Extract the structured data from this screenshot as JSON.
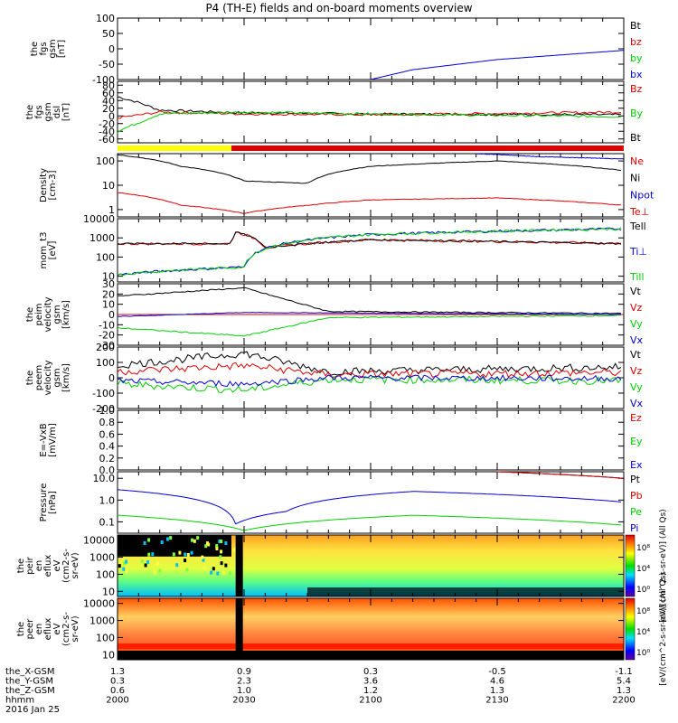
{
  "title": "P4 (TH-E) fields and on-board moments overview",
  "colors": {
    "black": "#000000",
    "red": "#e00000",
    "green": "#00d000",
    "blue": "#0000d8",
    "yellow": "#ffff00"
  },
  "chart_data": [
    {
      "type": "line",
      "panel": "fgs_gsm_nT",
      "ylabel": [
        "the",
        "fgs",
        "gsm",
        "[nT]"
      ],
      "ylim": [
        -100,
        100
      ],
      "yticks": [
        "100",
        "50",
        "0",
        "-50",
        "-100"
      ],
      "legend": [
        {
          "label": "Bt",
          "color": "black"
        },
        {
          "label": "bz",
          "color": "red"
        },
        {
          "label": "by",
          "color": "green"
        },
        {
          "label": "bx",
          "color": "blue"
        }
      ],
      "series": [
        {
          "name": "bx",
          "x": [
            "2100",
            "2110",
            "2130",
            "2150",
            "2200"
          ],
          "y": [
            -100,
            -68,
            -35,
            -15,
            -5
          ]
        }
      ]
    },
    {
      "type": "line",
      "panel": "fgs_gsm_dsl_nT",
      "ylabel": [
        "the",
        "fgs",
        "gsm",
        "dsl",
        "[nT]"
      ],
      "ylim": [
        -70,
        90
      ],
      "yticks": [
        "80",
        "60",
        "40",
        "20",
        "0",
        "-20",
        "-40",
        "-60"
      ],
      "legend": [
        {
          "label": "Bz",
          "color": "red"
        },
        {
          "label": "By",
          "color": "green"
        },
        {
          "label": "Bt",
          "color": "black"
        }
      ],
      "series": [
        {
          "name": "Bt",
          "x": [
            "2000",
            "2005",
            "2010",
            "2030",
            "2100",
            "2200"
          ],
          "y": [
            50,
            35,
            15,
            8,
            5,
            3
          ]
        },
        {
          "name": "Bz",
          "x": [
            "2000",
            "2010",
            "2030",
            "2100",
            "2200"
          ],
          "y": [
            -5,
            10,
            5,
            3,
            10
          ]
        },
        {
          "name": "By",
          "x": [
            "2000",
            "2010",
            "2030",
            "2100",
            "2200"
          ],
          "y": [
            -40,
            5,
            10,
            5,
            -2
          ]
        }
      ]
    },
    {
      "type": "line",
      "panel": "density",
      "ylabel": [
        "Density",
        "[cm-3]"
      ],
      "log": true,
      "ylim": [
        0.5,
        200
      ],
      "yticks": [
        "100",
        "10",
        "1"
      ],
      "legend": [
        {
          "label": "Ne",
          "color": "red"
        },
        {
          "label": "Ni",
          "color": "black"
        },
        {
          "label": "Npot",
          "color": "blue"
        },
        {
          "label": "Te⊥",
          "color": "red"
        }
      ],
      "series": [
        {
          "name": "Ni",
          "x": [
            "2000",
            "2015",
            "2030",
            "2045",
            "2100",
            "2130",
            "2200"
          ],
          "y": [
            180,
            60,
            15,
            12,
            60,
            100,
            40
          ]
        },
        {
          "name": "Ne",
          "x": [
            "2000",
            "2015",
            "2030",
            "2045",
            "2100",
            "2130",
            "2200"
          ],
          "y": [
            5,
            1.5,
            0.7,
            1.5,
            2.5,
            3,
            1.5
          ]
        },
        {
          "name": "Npot",
          "x": [
            "2125",
            "2140",
            "2200"
          ],
          "y": [
            200,
            150,
            120
          ]
        }
      ]
    },
    {
      "type": "line",
      "panel": "mom_t3",
      "ylabel": [
        "mom_t3",
        "[eV]"
      ],
      "log": true,
      "ylim": [
        5,
        10000
      ],
      "yticks": [
        "10000",
        "1000",
        "100",
        "10"
      ],
      "legend": [
        {
          "label": "Tell",
          "color": "black"
        },
        {
          "label": "Ti⊥",
          "color": "blue"
        },
        {
          "label": "Till",
          "color": "green"
        }
      ],
      "series": [
        {
          "name": "Te",
          "x": [
            "2000",
            "2027",
            "2028",
            "2035",
            "2100",
            "2200"
          ],
          "y": [
            500,
            500,
            2000,
            300,
            800,
            500
          ]
        },
        {
          "name": "Ti",
          "x": [
            "2000",
            "2030",
            "2100",
            "2200"
          ],
          "y": [
            12,
            30,
            1500,
            3000
          ]
        }
      ]
    },
    {
      "type": "line",
      "panel": "peim_velocity",
      "ylabel": [
        "the",
        "peim",
        "velocity",
        "gsm",
        "[km/s]"
      ],
      "ylim": [
        -30,
        30
      ],
      "yticks": [
        "30",
        "20",
        "10",
        "0",
        "-10",
        "-20",
        "-30"
      ],
      "legend": [
        {
          "label": "Vt",
          "color": "black"
        },
        {
          "label": "Vz",
          "color": "red"
        },
        {
          "label": "Vy",
          "color": "green"
        },
        {
          "label": "Vx",
          "color": "blue"
        }
      ],
      "series": [
        {
          "name": "Vt",
          "x": [
            "2000",
            "2030",
            "2050",
            "2200"
          ],
          "y": [
            18,
            26,
            3,
            1
          ]
        },
        {
          "name": "Vy",
          "x": [
            "2000",
            "2030",
            "2050",
            "2200"
          ],
          "y": [
            -13,
            -21,
            -3,
            -1
          ]
        }
      ]
    },
    {
      "type": "line",
      "panel": "peem_velocity",
      "ylabel": [
        "the",
        "peem",
        "velocity",
        "gsm",
        "[km/s]"
      ],
      "ylim": [
        -200,
        200
      ],
      "yticks": [
        "200",
        "100",
        "0",
        "-100",
        "-200"
      ],
      "legend": [
        {
          "label": "Vt",
          "color": "black"
        },
        {
          "label": "Vz",
          "color": "red"
        },
        {
          "label": "Vy",
          "color": "green"
        },
        {
          "label": "Vx",
          "color": "blue"
        }
      ],
      "series": [
        {
          "name": "Vt",
          "x": [
            "2000",
            "2030",
            "2050",
            "2200"
          ],
          "y": [
            80,
            160,
            40,
            70
          ]
        }
      ]
    },
    {
      "type": "line",
      "panel": "E_vxB",
      "ylabel": [
        "E=-VxB",
        "[mV/m]"
      ],
      "ylim": [
        0,
        1
      ],
      "yticks": [
        "1.0",
        "0.8",
        "0.6",
        "0.4",
        "0.2",
        "0.0"
      ],
      "legend": [
        {
          "label": "Ez",
          "color": "red"
        },
        {
          "label": "Ey",
          "color": "green"
        },
        {
          "label": "Ex",
          "color": "blue"
        }
      ],
      "series": []
    },
    {
      "type": "line",
      "panel": "pressure",
      "ylabel": [
        "Pressure",
        "[nPa]"
      ],
      "log": true,
      "ylim": [
        0.03,
        20
      ],
      "yticks": [
        "10.0",
        "1.0",
        "0.1"
      ],
      "legend": [
        {
          "label": "Pt",
          "color": "black"
        },
        {
          "label": "Pb",
          "color": "red"
        },
        {
          "label": "Pe",
          "color": "green"
        },
        {
          "label": "Pi",
          "color": "blue"
        }
      ],
      "series": [
        {
          "name": "Pt",
          "x": [
            "2130",
            "2200"
          ],
          "y": [
            20,
            10
          ]
        },
        {
          "name": "Pi",
          "x": [
            "2000",
            "2028",
            "2040",
            "2110",
            "2200"
          ],
          "y": [
            3,
            0.08,
            0.3,
            2.5,
            0.8
          ]
        },
        {
          "name": "Pe",
          "x": [
            "2000",
            "2030",
            "2110",
            "2200"
          ],
          "y": [
            0.2,
            0.04,
            0.2,
            0.07
          ]
        }
      ]
    },
    {
      "type": "heatmap",
      "panel": "peir_en_eflux",
      "ylabel": [
        "the",
        "peir",
        "en",
        "eflux",
        "eV",
        "(cm2-s-",
        "sr-eV)"
      ],
      "log": true,
      "ylim": [
        5,
        20000
      ],
      "yticks": [
        "10000",
        "1000",
        "100",
        "10"
      ],
      "colorbar": {
        "label": "[eV/(cm^2-s-sr-eV)] (All Qs)",
        "ticks": [
          "10⁸",
          "10⁴",
          "10⁰"
        ]
      }
    },
    {
      "type": "heatmap",
      "panel": "peer_en_eflux",
      "ylabel": [
        "the",
        "peer",
        "en",
        "eflux",
        "eV",
        "(cm2-s-",
        "sr-eV)"
      ],
      "log": true,
      "ylim": [
        5,
        20000
      ],
      "yticks": [
        "10000",
        "1000",
        "100",
        "10"
      ],
      "colorbar": {
        "label": "[eV/(cm^2-s-sr-eV)] (All Qs)",
        "ticks": [
          "10⁸",
          "10⁴",
          "10⁰"
        ]
      }
    }
  ],
  "xaxis": {
    "row_labels": [
      "the_X-GSM",
      "the_Y-GSM",
      "the_Z-GSM",
      "hhmm",
      "2016 Jan 25"
    ],
    "ticks": [
      {
        "x": "1.3",
        "y": "0.3",
        "z": "0.6",
        "t": "2000"
      },
      {
        "x": "0.9",
        "y": "2.3",
        "z": "1.0",
        "t": "2030"
      },
      {
        "x": "0.3",
        "y": "3.6",
        "z": "1.2",
        "t": "2100"
      },
      {
        "x": "-0.5",
        "y": "4.6",
        "z": "1.3",
        "t": "2130"
      },
      {
        "x": "-1.1",
        "y": "5.4",
        "z": "1.3",
        "t": "2200"
      }
    ]
  }
}
